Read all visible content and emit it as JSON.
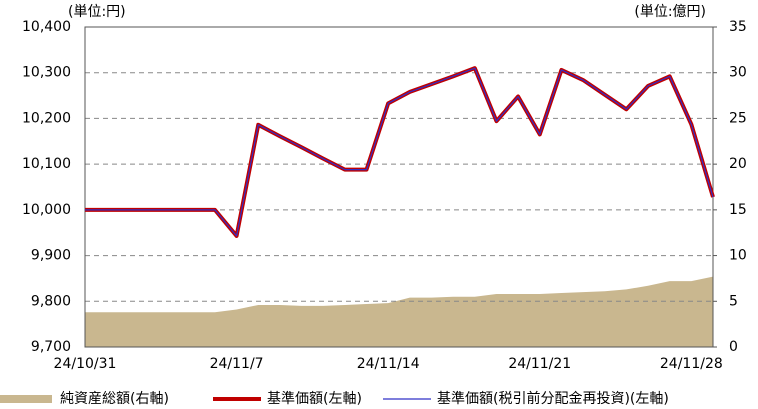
{
  "chart_data": {
    "type": "line",
    "left_unit": "(単位:円)",
    "right_unit": "(単位:億円)",
    "categories": [
      "24/10/31",
      null,
      null,
      null,
      null,
      null,
      null,
      "24/11/7",
      null,
      null,
      null,
      null,
      null,
      null,
      "24/11/14",
      null,
      null,
      null,
      null,
      null,
      null,
      "24/11/21",
      null,
      null,
      null,
      null,
      null,
      null,
      "24/11/28",
      null
    ],
    "series": [
      {
        "name": "純資産総額(右軸)",
        "type": "area",
        "axis": "y2",
        "color": "#c9b78f",
        "values": [
          3.8,
          3.8,
          3.8,
          3.8,
          3.8,
          3.8,
          3.8,
          4.1,
          4.6,
          4.6,
          4.5,
          4.5,
          4.6,
          4.7,
          4.8,
          5.4,
          5.4,
          5.5,
          5.5,
          5.8,
          5.8,
          5.8,
          5.9,
          6.0,
          6.1,
          6.3,
          6.7,
          7.2,
          7.2,
          7.7
        ]
      },
      {
        "name": "基準価額(左軸)",
        "type": "line",
        "color": "#c00000",
        "width": 4,
        "values": [
          10000,
          10000,
          10000,
          10000,
          10000,
          10000,
          10000,
          9943,
          10186,
          10161,
          10137,
          10112,
          10088,
          10088,
          10233,
          10258,
          10275,
          10292,
          10310,
          10194,
          10248,
          10165,
          10306,
          10284,
          10252,
          10220,
          10271,
          10292,
          10187,
          10028
        ]
      },
      {
        "name": "基準価額(税引前分配金再投資)(左軸)",
        "type": "line",
        "color": "#3030c8",
        "width": 1.2,
        "values": [
          10000,
          10000,
          10000,
          10000,
          10000,
          10000,
          10000,
          9943,
          10186,
          10161,
          10137,
          10112,
          10088,
          10088,
          10233,
          10258,
          10275,
          10292,
          10310,
          10194,
          10248,
          10165,
          10306,
          10284,
          10252,
          10220,
          10271,
          10292,
          10187,
          10028
        ]
      }
    ],
    "ylim": [
      9700,
      10400
    ],
    "yticks": [
      {
        "value": 9700,
        "label": "9,700"
      },
      {
        "value": 9800,
        "label": "9,800"
      },
      {
        "value": 9900,
        "label": "9,900"
      },
      {
        "value": 10000,
        "label": "10,000"
      },
      {
        "value": 10100,
        "label": "10,100"
      },
      {
        "value": 10200,
        "label": "10,200"
      },
      {
        "value": 10300,
        "label": "10,300"
      },
      {
        "value": 10400,
        "label": "10,400"
      }
    ],
    "y2lim": [
      0,
      35
    ],
    "y2ticks": [
      0,
      5,
      10,
      15,
      20,
      25,
      30,
      35
    ],
    "grid": true
  }
}
